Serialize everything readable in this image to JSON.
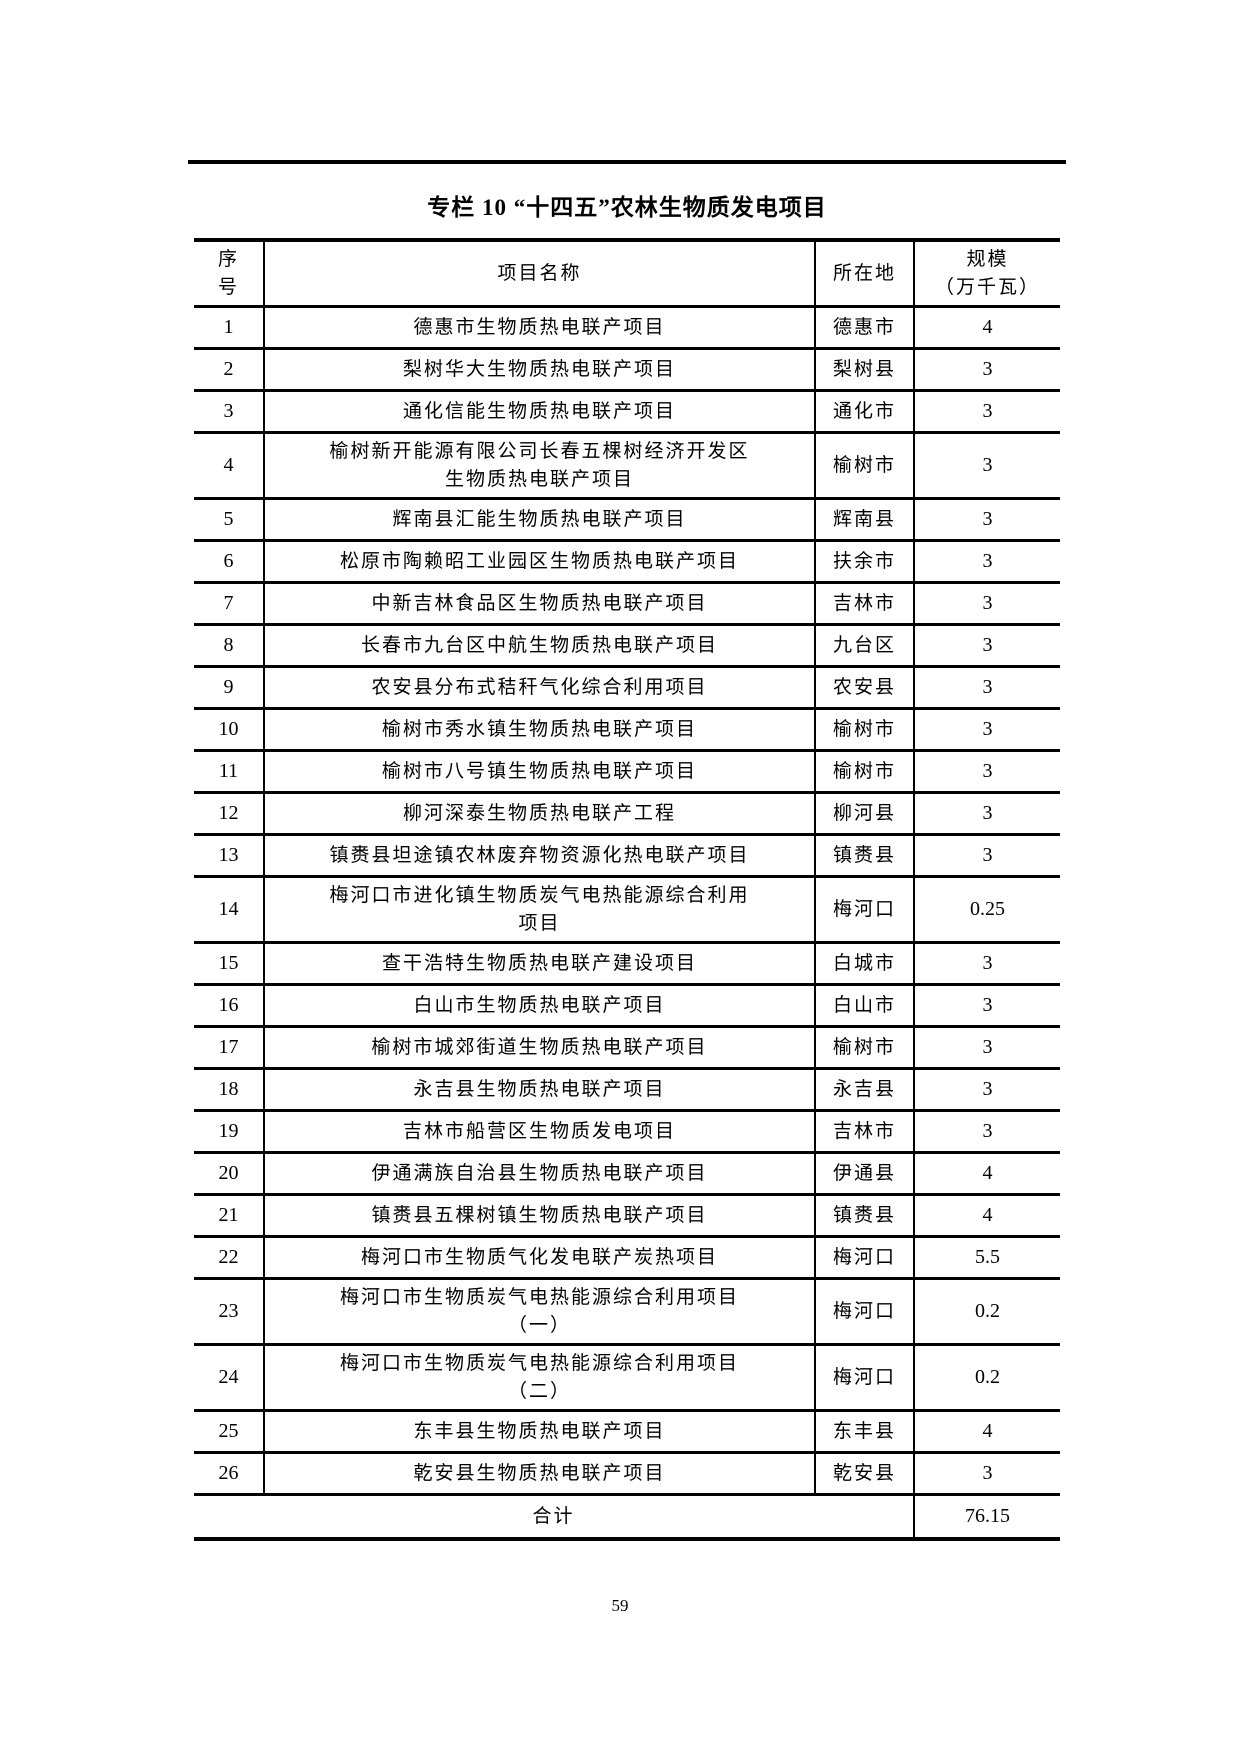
{
  "title": "专栏 10 “十四五”农林生物质发电项目",
  "table": {
    "headers": {
      "index": "序\n号",
      "name": "项目名称",
      "location": "所在地",
      "scale": "规模\n（万千瓦）"
    },
    "rows": [
      {
        "no": "1",
        "name": "德惠市生物质热电联产项目",
        "location": "德惠市",
        "scale": "4"
      },
      {
        "no": "2",
        "name": "梨树华大生物质热电联产项目",
        "location": "梨树县",
        "scale": "3"
      },
      {
        "no": "3",
        "name": "通化信能生物质热电联产项目",
        "location": "通化市",
        "scale": "3"
      },
      {
        "no": "4",
        "name": "榆树新开能源有限公司长春五棵树经济开发区\n生物质热电联产项目",
        "location": "榆树市",
        "scale": "3"
      },
      {
        "no": "5",
        "name": "辉南县汇能生物质热电联产项目",
        "location": "辉南县",
        "scale": "3"
      },
      {
        "no": "6",
        "name": "松原市陶赖昭工业园区生物质热电联产项目",
        "location": "扶余市",
        "scale": "3"
      },
      {
        "no": "7",
        "name": "中新吉林食品区生物质热电联产项目",
        "location": "吉林市",
        "scale": "3"
      },
      {
        "no": "8",
        "name": "长春市九台区中航生物质热电联产项目",
        "location": "九台区",
        "scale": "3"
      },
      {
        "no": "9",
        "name": "农安县分布式秸秆气化综合利用项目",
        "location": "农安县",
        "scale": "3"
      },
      {
        "no": "10",
        "name": "榆树市秀水镇生物质热电联产项目",
        "location": "榆树市",
        "scale": "3"
      },
      {
        "no": "11",
        "name": "榆树市八号镇生物质热电联产项目",
        "location": "榆树市",
        "scale": "3"
      },
      {
        "no": "12",
        "name": "柳河深泰生物质热电联产工程",
        "location": "柳河县",
        "scale": "3"
      },
      {
        "no": "13",
        "name": "镇赉县坦途镇农林废弃物资源化热电联产项目",
        "location": "镇赉县",
        "scale": "3"
      },
      {
        "no": "14",
        "name": "梅河口市进化镇生物质炭气电热能源综合利用\n项目",
        "location": "梅河口",
        "scale": "0.25"
      },
      {
        "no": "15",
        "name": "查干浩特生物质热电联产建设项目",
        "location": "白城市",
        "scale": "3"
      },
      {
        "no": "16",
        "name": "白山市生物质热电联产项目",
        "location": "白山市",
        "scale": "3"
      },
      {
        "no": "17",
        "name": "榆树市城郊街道生物质热电联产项目",
        "location": "榆树市",
        "scale": "3"
      },
      {
        "no": "18",
        "name": "永吉县生物质热电联产项目",
        "location": "永吉县",
        "scale": "3"
      },
      {
        "no": "19",
        "name": "吉林市船营区生物质发电项目",
        "location": "吉林市",
        "scale": "3"
      },
      {
        "no": "20",
        "name": "伊通满族自治县生物质热电联产项目",
        "location": "伊通县",
        "scale": "4"
      },
      {
        "no": "21",
        "name": "镇赉县五棵树镇生物质热电联产项目",
        "location": "镇赉县",
        "scale": "4"
      },
      {
        "no": "22",
        "name": "梅河口市生物质气化发电联产炭热项目",
        "location": "梅河口",
        "scale": "5.5"
      },
      {
        "no": "23",
        "name": "梅河口市生物质炭气电热能源综合利用项目\n（一）",
        "location": "梅河口",
        "scale": "0.2"
      },
      {
        "no": "24",
        "name": "梅河口市生物质炭气电热能源综合利用项目\n（二）",
        "location": "梅河口",
        "scale": "0.2"
      },
      {
        "no": "25",
        "name": "东丰县生物质热电联产项目",
        "location": "东丰县",
        "scale": "4"
      },
      {
        "no": "26",
        "name": "乾安县生物质热电联产项目",
        "location": "乾安县",
        "scale": "3"
      }
    ],
    "total_label": "合计",
    "total_value": "76.15"
  },
  "footer": {
    "page_number": "59"
  }
}
